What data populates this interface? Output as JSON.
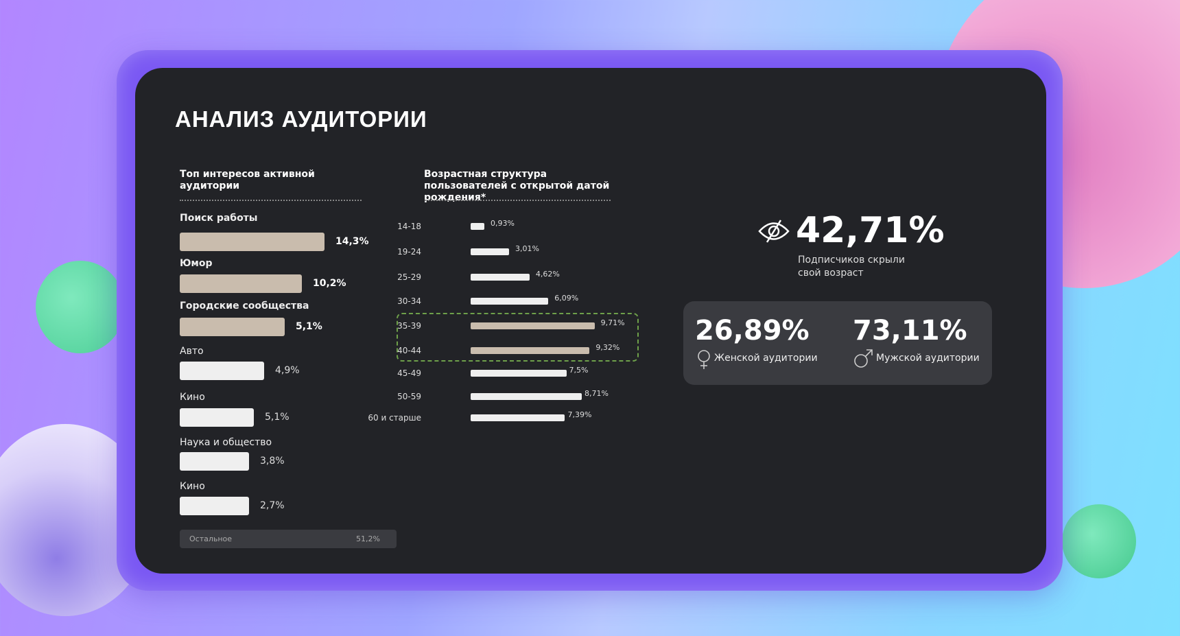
{
  "title": "АНАЛИЗ АУДИТОРИИ",
  "interests": {
    "heading": "Топ интересов активной аудитории",
    "items": [
      {
        "label": "Поиск работы",
        "value": "14,3%",
        "highlight": true
      },
      {
        "label": "Юмор",
        "value": "10,2%",
        "highlight": true
      },
      {
        "label": "Городские сообщества",
        "value": "5,1%",
        "highlight": true
      },
      {
        "label": "Авто",
        "value": "4,9%",
        "highlight": false
      },
      {
        "label": "Кино",
        "value": "5,1%",
        "highlight": false
      },
      {
        "label": "Наука и общество",
        "value": "3,8%",
        "highlight": false
      },
      {
        "label": "Кино",
        "value": "2,7%",
        "highlight": false
      }
    ],
    "rest": {
      "label": "Остальное",
      "value": "51,2%"
    }
  },
  "chart_data": {
    "type": "bar",
    "title": "Возрастная структура пользователей с открытой датой рождения*",
    "categories": [
      "14-18",
      "19-24",
      "25-29",
      "30-34",
      "35-39",
      "40-44",
      "45-49",
      "50-59",
      "60 и старше"
    ],
    "values": [
      0.93,
      3.01,
      4.62,
      6.09,
      9.71,
      9.32,
      7.5,
      8.71,
      7.39
    ],
    "labels": [
      "0,93%",
      "3,01%",
      "4,62%",
      "6,09%",
      "9,71%",
      "9,32%",
      "7,5%",
      "8,71%",
      "7,39%"
    ],
    "highlighted": [
      "35-39",
      "40-44"
    ],
    "orientation": "horizontal"
  },
  "hidden_age": {
    "value": "42,71%",
    "caption_1": "Подписчиков скрыли",
    "caption_2": "свой возраст",
    "icon": "eye-off-icon"
  },
  "gender": {
    "female": {
      "value": "26,89%",
      "label": "Женской аудитории",
      "icon": "female-icon"
    },
    "male": {
      "value": "73,11%",
      "label": "Мужской аудитории",
      "icon": "male-icon"
    }
  },
  "colors": {
    "highlight_bar": "#c9bcad",
    "bar": "#efefef",
    "panel": "#222327",
    "card": "#3a3b40",
    "dash": "#6ea04a",
    "frame": "#7a58f3"
  }
}
